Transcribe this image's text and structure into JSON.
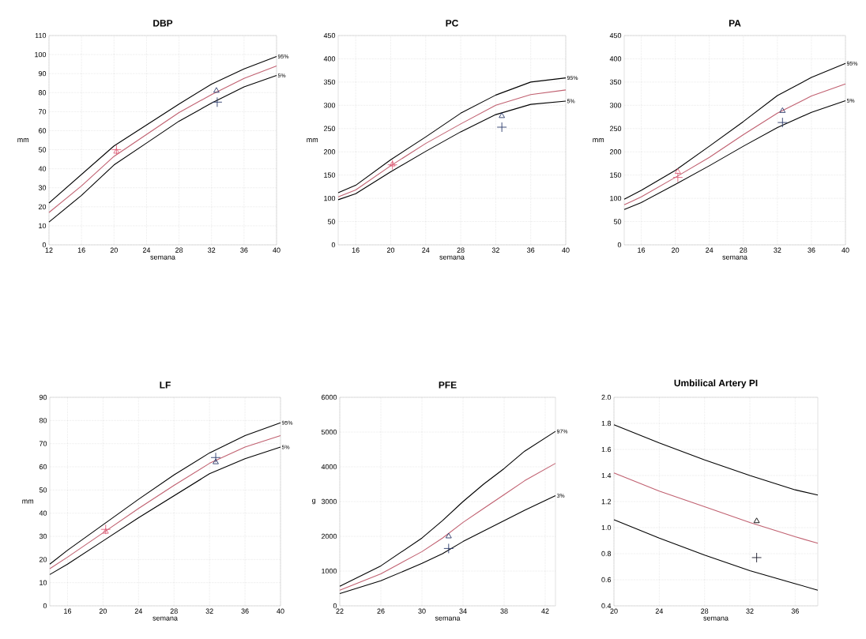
{
  "chart_data": [
    {
      "type": "line",
      "title": "DBP",
      "xlabel": "semana",
      "ylabel": "mm",
      "xlim": [
        12,
        40
      ],
      "xticks": [
        12,
        16,
        20,
        24,
        28,
        32,
        36,
        40
      ],
      "ylim": [
        0,
        110
      ],
      "yticks": [
        0,
        10,
        20,
        30,
        40,
        50,
        60,
        70,
        80,
        90,
        100,
        110
      ],
      "grid": true,
      "series": [
        {
          "name": "95%",
          "type": "line",
          "marker": "none",
          "color": "#000000",
          "x": [
            12,
            16,
            20,
            24,
            28,
            32,
            36,
            40
          ],
          "values": [
            22,
            37,
            52,
            63,
            74,
            84.5,
            92.5,
            99
          ]
        },
        {
          "type": "line",
          "marker": "none",
          "color": "#c06070",
          "x": [
            12,
            16,
            20,
            24,
            28,
            32,
            36,
            40
          ],
          "values": [
            17,
            31,
            46.5,
            58,
            69.5,
            79,
            87.5,
            94
          ]
        },
        {
          "name": "5%",
          "type": "line",
          "marker": "none",
          "color": "#000000",
          "x": [
            12,
            16,
            20,
            24,
            28,
            32,
            36,
            40
          ],
          "values": [
            12,
            26,
            42,
            53.5,
            65,
            74.5,
            83,
            89
          ]
        },
        {
          "type": "scatter",
          "marker": "triangle",
          "colors": [
            "#e0607a",
            "#2a3a6a"
          ],
          "x": [
            20.3,
            32.6
          ],
          "values": [
            49,
            81
          ]
        },
        {
          "type": "scatter",
          "marker": "cross",
          "colors": [
            "#e0607a",
            "#2a3a6a"
          ],
          "x": [
            20.3,
            32.7
          ],
          "values": [
            50,
            75
          ]
        }
      ]
    },
    {
      "type": "line",
      "title": "PC",
      "xlabel": "semana",
      "ylabel": "mm",
      "xlim": [
        14,
        40
      ],
      "xticks": [
        16,
        20,
        24,
        28,
        32,
        36,
        40
      ],
      "ylim": [
        0,
        450
      ],
      "yticks": [
        0,
        50,
        100,
        150,
        200,
        250,
        300,
        350,
        400,
        450
      ],
      "grid": true,
      "series": [
        {
          "name": "95%",
          "type": "line",
          "marker": "none",
          "color": "#000000",
          "x": [
            14,
            16,
            20,
            24,
            28,
            32,
            36,
            40
          ],
          "values": [
            112,
            128,
            183,
            232,
            283,
            322,
            350,
            359
          ]
        },
        {
          "type": "line",
          "marker": "none",
          "color": "#c06070",
          "x": [
            14,
            16,
            20,
            24,
            28,
            32,
            36,
            40
          ],
          "values": [
            103,
            118,
            170,
            218,
            260,
            300,
            323,
            333
          ]
        },
        {
          "name": "5%",
          "type": "line",
          "marker": "none",
          "color": "#000000",
          "x": [
            14,
            16,
            20,
            24,
            28,
            32,
            36,
            40
          ],
          "values": [
            97,
            110,
            157,
            201,
            243,
            280,
            302,
            309
          ]
        },
        {
          "type": "scatter",
          "marker": "triangle",
          "colors": [
            "#e0607a",
            "#2a3a6a"
          ],
          "x": [
            20.2,
            32.7
          ],
          "values": [
            173,
            277
          ]
        },
        {
          "type": "scatter",
          "marker": "cross",
          "colors": [
            "#e0607a",
            "#2a3a6a"
          ],
          "x": [
            20.2,
            32.7
          ],
          "values": [
            172,
            253
          ]
        }
      ]
    },
    {
      "type": "line",
      "title": "PA",
      "xlabel": "semana",
      "ylabel": "mm",
      "xlim": [
        14,
        40
      ],
      "xticks": [
        16,
        20,
        24,
        28,
        32,
        36,
        40
      ],
      "ylim": [
        0,
        450
      ],
      "yticks": [
        0,
        50,
        100,
        150,
        200,
        250,
        300,
        350,
        400,
        450
      ],
      "grid": true,
      "series": [
        {
          "name": "95%",
          "type": "line",
          "marker": "none",
          "color": "#000000",
          "x": [
            14,
            16,
            20,
            24,
            28,
            32,
            36,
            40
          ],
          "values": [
            98,
            117,
            160,
            212,
            265,
            321,
            360,
            390
          ]
        },
        {
          "type": "line",
          "marker": "none",
          "color": "#c06070",
          "x": [
            14,
            16,
            20,
            24,
            28,
            32,
            36,
            40
          ],
          "values": [
            86,
            103,
            145,
            188,
            237,
            283,
            320,
            346
          ]
        },
        {
          "name": "5%",
          "type": "line",
          "marker": "none",
          "color": "#000000",
          "x": [
            14,
            16,
            20,
            24,
            28,
            32,
            36,
            40
          ],
          "values": [
            76,
            91,
            130,
            170,
            212,
            252,
            285,
            310
          ]
        },
        {
          "type": "scatter",
          "marker": "triangle",
          "colors": [
            "#e0607a",
            "#2a3a6a"
          ],
          "x": [
            20.3,
            32.6
          ],
          "values": [
            157,
            288
          ]
        },
        {
          "type": "scatter",
          "marker": "cross",
          "colors": [
            "#e0607a",
            "#2a3a6a"
          ],
          "x": [
            20.3,
            32.6
          ],
          "values": [
            145,
            263
          ]
        }
      ]
    },
    {
      "type": "line",
      "title": "LF",
      "xlabel": "semana",
      "ylabel": "mm",
      "xlim": [
        14,
        40
      ],
      "xticks": [
        16,
        20,
        24,
        28,
        32,
        36,
        40
      ],
      "ylim": [
        0,
        90
      ],
      "yticks": [
        0,
        10,
        20,
        30,
        40,
        50,
        60,
        70,
        80,
        90
      ],
      "grid": true,
      "series": [
        {
          "name": "95%",
          "type": "line",
          "marker": "none",
          "color": "#000000",
          "x": [
            14,
            16,
            20,
            24,
            28,
            32,
            36,
            40
          ],
          "values": [
            18,
            24,
            35,
            46,
            56.5,
            66,
            73.5,
            79
          ]
        },
        {
          "type": "line",
          "marker": "none",
          "color": "#c06070",
          "x": [
            14,
            16,
            20,
            24,
            28,
            32,
            36,
            40
          ],
          "values": [
            16,
            21,
            31.5,
            42,
            52,
            61.5,
            68.5,
            73.5
          ]
        },
        {
          "name": "5%",
          "type": "line",
          "marker": "none",
          "color": "#000000",
          "x": [
            14,
            16,
            20,
            24,
            28,
            32,
            36,
            40
          ],
          "values": [
            13.5,
            18,
            28,
            38,
            47.5,
            57,
            63.5,
            68.5
          ]
        },
        {
          "type": "scatter",
          "marker": "triangle",
          "colors": [
            "#e0607a",
            "#2a3a6a"
          ],
          "x": [
            20.3,
            32.7
          ],
          "values": [
            32,
            62
          ]
        },
        {
          "type": "scatter",
          "marker": "cross",
          "colors": [
            "#e0607a",
            "#2a3a6a"
          ],
          "x": [
            20.3,
            32.7
          ],
          "values": [
            33,
            64
          ]
        }
      ]
    },
    {
      "type": "line",
      "title": "PFE",
      "xlabel": "semana",
      "ylabel": "g",
      "xlim": [
        22,
        43
      ],
      "xticks": [
        22,
        26,
        30,
        34,
        38,
        42
      ],
      "ylim": [
        0,
        6000
      ],
      "yticks": [
        0,
        1000,
        2000,
        3000,
        4000,
        5000,
        6000
      ],
      "grid": true,
      "series": [
        {
          "name": "97%",
          "type": "line",
          "marker": "none",
          "color": "#000000",
          "x": [
            22,
            26,
            30,
            32,
            34,
            36,
            38,
            40,
            43
          ],
          "values": [
            560,
            1150,
            1950,
            2450,
            3000,
            3500,
            3950,
            4450,
            5020
          ]
        },
        {
          "type": "line",
          "marker": "none",
          "color": "#c06070",
          "x": [
            22,
            26,
            30,
            32,
            34,
            36,
            38,
            40,
            43
          ],
          "values": [
            450,
            920,
            1560,
            1950,
            2400,
            2800,
            3200,
            3600,
            4100
          ]
        },
        {
          "name": "3%",
          "type": "line",
          "marker": "none",
          "color": "#000000",
          "x": [
            22,
            26,
            30,
            32,
            34,
            36,
            38,
            40,
            43
          ],
          "values": [
            350,
            720,
            1220,
            1500,
            1850,
            2150,
            2450,
            2750,
            3170
          ]
        },
        {
          "type": "scatter",
          "marker": "triangle",
          "color": "#2a3a6a",
          "x": [
            32.6
          ],
          "values": [
            2000
          ]
        },
        {
          "type": "scatter",
          "marker": "cross",
          "color": "#2a3a6a",
          "x": [
            32.6
          ],
          "values": [
            1650
          ]
        }
      ]
    },
    {
      "type": "line",
      "title": "Umbilical Artery PI",
      "xlabel": "semana",
      "xlim": [
        20,
        38
      ],
      "xticks": [
        20,
        24,
        28,
        32,
        36
      ],
      "ylim": [
        0.4,
        2.0
      ],
      "yticks": [
        {
          "value": 0.4,
          "label": "0.4"
        },
        {
          "value": 0.6,
          "label": "0.6"
        },
        {
          "value": 0.8,
          "label": "0.8"
        },
        {
          "value": 1.0,
          "label": "1.0"
        },
        {
          "value": 1.2,
          "label": "1.2"
        },
        {
          "value": 1.4,
          "label": "1.4"
        },
        {
          "value": 1.6,
          "label": "1.6"
        },
        {
          "value": 1.8,
          "label": "1.8"
        },
        {
          "value": 2.0,
          "label": "2.0"
        }
      ],
      "grid": true,
      "series": [
        {
          "type": "line",
          "marker": "none",
          "color": "#000000",
          "x": [
            20,
            24,
            28,
            32,
            36,
            38
          ],
          "values": [
            1.79,
            1.65,
            1.52,
            1.4,
            1.29,
            1.25
          ]
        },
        {
          "type": "line",
          "marker": "none",
          "color": "#c06070",
          "x": [
            20,
            24,
            28,
            32,
            36,
            38
          ],
          "values": [
            1.42,
            1.28,
            1.16,
            1.04,
            0.93,
            0.88
          ]
        },
        {
          "type": "line",
          "marker": "none",
          "color": "#000000",
          "x": [
            20,
            24,
            28,
            32,
            36,
            38
          ],
          "values": [
            1.06,
            0.92,
            0.79,
            0.67,
            0.57,
            0.52
          ]
        },
        {
          "type": "scatter",
          "marker": "triangle",
          "color": "#000000",
          "x": [
            32.6
          ],
          "values": [
            1.05
          ]
        },
        {
          "type": "scatter",
          "marker": "cross",
          "color": "#1a1a2a",
          "x": [
            32.6
          ],
          "values": [
            0.77
          ]
        }
      ]
    }
  ]
}
